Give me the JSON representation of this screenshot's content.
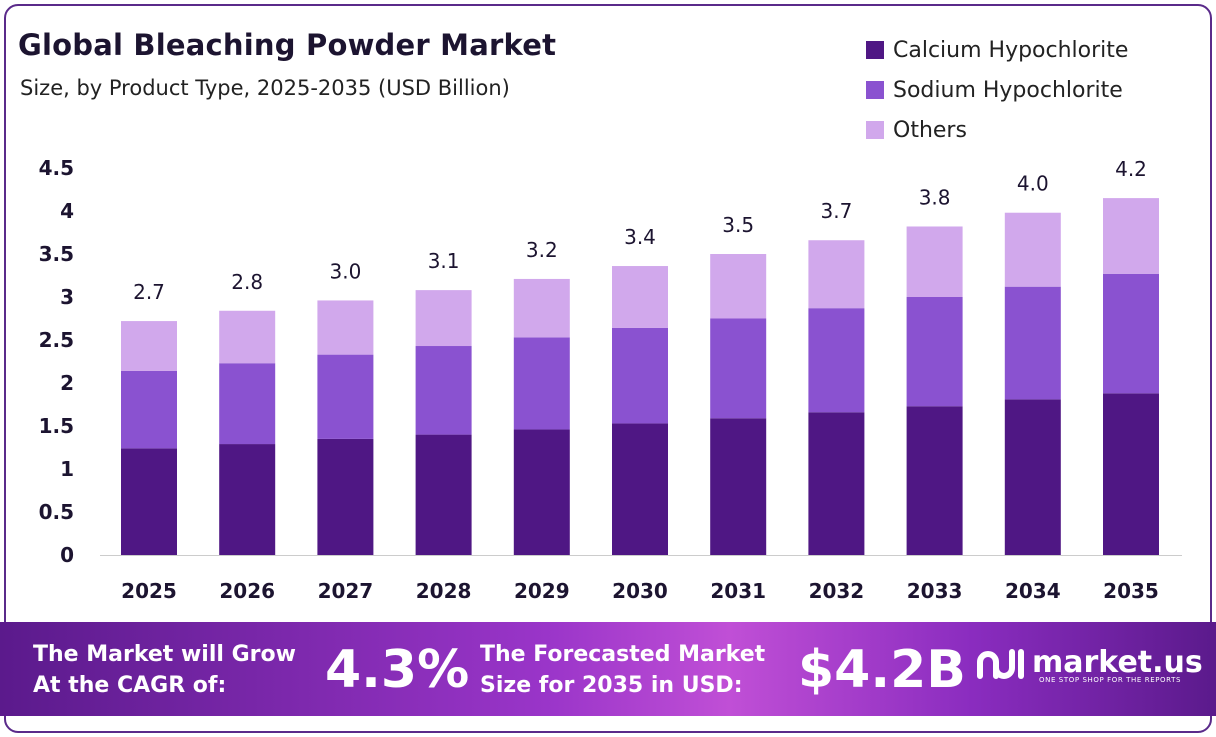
{
  "header": {
    "title": "Global Bleaching Powder Market",
    "subtitle": "Size, by Product Type, 2025-2035 (USD Billion)"
  },
  "colors": {
    "calcium": "#4f1784",
    "sodium": "#8a52d0",
    "others": "#d1a8ec",
    "axis": "#cccccc",
    "frame": "#5a2a8a"
  },
  "chart_data": {
    "type": "bar",
    "stacked": true,
    "categories": [
      "2025",
      "2026",
      "2027",
      "2028",
      "2029",
      "2030",
      "2031",
      "2032",
      "2033",
      "2034",
      "2035"
    ],
    "series": [
      {
        "name": "Calcium Hypochlorite",
        "values": [
          1.24,
          1.29,
          1.35,
          1.4,
          1.46,
          1.53,
          1.59,
          1.66,
          1.73,
          1.81,
          1.88
        ]
      },
      {
        "name": "Sodium Hypochlorite",
        "values": [
          0.9,
          0.94,
          0.98,
          1.03,
          1.07,
          1.11,
          1.16,
          1.21,
          1.27,
          1.31,
          1.39
        ]
      },
      {
        "name": "Others",
        "values": [
          0.58,
          0.61,
          0.63,
          0.65,
          0.68,
          0.72,
          0.75,
          0.79,
          0.82,
          0.86,
          0.88
        ]
      }
    ],
    "totals_labels": [
      "2.7",
      "2.8",
      "3.0",
      "3.1",
      "3.2",
      "3.4",
      "3.5",
      "3.7",
      "3.8",
      "4.0",
      "4.2"
    ],
    "y_ticks": [
      "0",
      "0.5",
      "1",
      "1.5",
      "2",
      "2.5",
      "3",
      "3.5",
      "4",
      "4.5"
    ],
    "ylim": [
      0,
      4.5
    ],
    "grid": false,
    "legend_position": "top-right"
  },
  "banner": {
    "cagr_label_line1": "The Market will Grow",
    "cagr_label_line2": "At the CAGR of:",
    "cagr_value": "4.3%",
    "forecast_label_line1": "The Forecasted Market",
    "forecast_label_line2": "Size for 2035 in USD:",
    "forecast_value": "$4.2B"
  },
  "logo": {
    "name": "market.us",
    "tagline": "ONE STOP SHOP FOR THE REPORTS"
  }
}
